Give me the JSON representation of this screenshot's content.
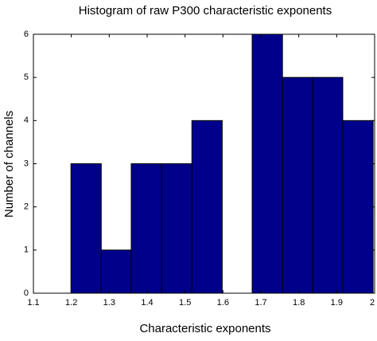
{
  "chart_data": {
    "type": "histogram",
    "title": "Histogram of raw P300 characteristic exponents",
    "x_label": "Characteristic exponents",
    "y_label": "Number of channels",
    "bins": [
      1.199,
      1.279,
      1.358,
      1.438,
      1.518,
      1.598,
      1.677,
      1.757,
      1.837,
      1.916,
      1.996
    ],
    "values": [
      3,
      1,
      3,
      3,
      4,
      0,
      6,
      5,
      5,
      4
    ],
    "color": "#00008b",
    "edge_color": "#000000",
    "xlim": [
      1.1,
      2
    ],
    "xticks": [
      1.1,
      1.2,
      1.3,
      1.4,
      1.5,
      1.6,
      1.7,
      1.8,
      1.9,
      2
    ],
    "ylim": [
      0,
      6
    ],
    "yticks": [
      0,
      1,
      2,
      3,
      4,
      5,
      6
    ]
  }
}
